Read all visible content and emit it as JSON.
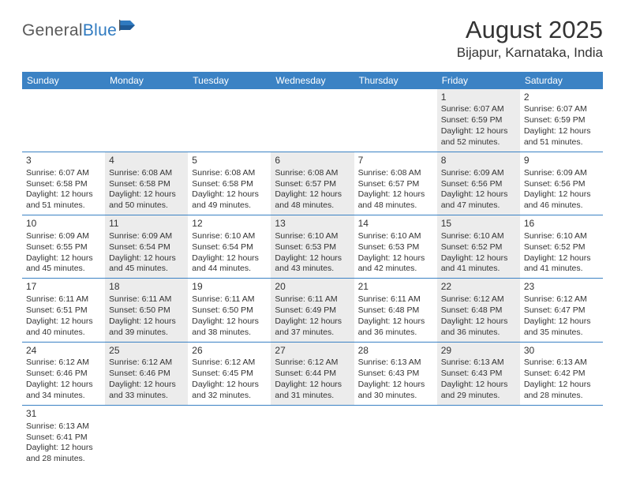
{
  "logo": {
    "part1": "General",
    "part2": "Blue"
  },
  "title": "August 2025",
  "location": "Bijapur, Karnataka, India",
  "colors": {
    "header_bg": "#3b82c4",
    "header_text": "#ffffff",
    "alt_row_bg": "#ececec",
    "divider": "#3b82c4",
    "text": "#333333",
    "logo_gray": "#5a5a5a",
    "logo_blue": "#2f7ac0"
  },
  "day_names": [
    "Sunday",
    "Monday",
    "Tuesday",
    "Wednesday",
    "Thursday",
    "Friday",
    "Saturday"
  ],
  "weeks": [
    [
      {
        "day": "",
        "lines": []
      },
      {
        "day": "",
        "lines": []
      },
      {
        "day": "",
        "lines": []
      },
      {
        "day": "",
        "lines": []
      },
      {
        "day": "",
        "lines": []
      },
      {
        "day": "1",
        "lines": [
          "Sunrise: 6:07 AM",
          "Sunset: 6:59 PM",
          "Daylight: 12 hours and 52 minutes."
        ]
      },
      {
        "day": "2",
        "lines": [
          "Sunrise: 6:07 AM",
          "Sunset: 6:59 PM",
          "Daylight: 12 hours and 51 minutes."
        ]
      }
    ],
    [
      {
        "day": "3",
        "lines": [
          "Sunrise: 6:07 AM",
          "Sunset: 6:58 PM",
          "Daylight: 12 hours and 51 minutes."
        ]
      },
      {
        "day": "4",
        "lines": [
          "Sunrise: 6:08 AM",
          "Sunset: 6:58 PM",
          "Daylight: 12 hours and 50 minutes."
        ]
      },
      {
        "day": "5",
        "lines": [
          "Sunrise: 6:08 AM",
          "Sunset: 6:58 PM",
          "Daylight: 12 hours and 49 minutes."
        ]
      },
      {
        "day": "6",
        "lines": [
          "Sunrise: 6:08 AM",
          "Sunset: 6:57 PM",
          "Daylight: 12 hours and 48 minutes."
        ]
      },
      {
        "day": "7",
        "lines": [
          "Sunrise: 6:08 AM",
          "Sunset: 6:57 PM",
          "Daylight: 12 hours and 48 minutes."
        ]
      },
      {
        "day": "8",
        "lines": [
          "Sunrise: 6:09 AM",
          "Sunset: 6:56 PM",
          "Daylight: 12 hours and 47 minutes."
        ]
      },
      {
        "day": "9",
        "lines": [
          "Sunrise: 6:09 AM",
          "Sunset: 6:56 PM",
          "Daylight: 12 hours and 46 minutes."
        ]
      }
    ],
    [
      {
        "day": "10",
        "lines": [
          "Sunrise: 6:09 AM",
          "Sunset: 6:55 PM",
          "Daylight: 12 hours and 45 minutes."
        ]
      },
      {
        "day": "11",
        "lines": [
          "Sunrise: 6:09 AM",
          "Sunset: 6:54 PM",
          "Daylight: 12 hours and 45 minutes."
        ]
      },
      {
        "day": "12",
        "lines": [
          "Sunrise: 6:10 AM",
          "Sunset: 6:54 PM",
          "Daylight: 12 hours and 44 minutes."
        ]
      },
      {
        "day": "13",
        "lines": [
          "Sunrise: 6:10 AM",
          "Sunset: 6:53 PM",
          "Daylight: 12 hours and 43 minutes."
        ]
      },
      {
        "day": "14",
        "lines": [
          "Sunrise: 6:10 AM",
          "Sunset: 6:53 PM",
          "Daylight: 12 hours and 42 minutes."
        ]
      },
      {
        "day": "15",
        "lines": [
          "Sunrise: 6:10 AM",
          "Sunset: 6:52 PM",
          "Daylight: 12 hours and 41 minutes."
        ]
      },
      {
        "day": "16",
        "lines": [
          "Sunrise: 6:10 AM",
          "Sunset: 6:52 PM",
          "Daylight: 12 hours and 41 minutes."
        ]
      }
    ],
    [
      {
        "day": "17",
        "lines": [
          "Sunrise: 6:11 AM",
          "Sunset: 6:51 PM",
          "Daylight: 12 hours and 40 minutes."
        ]
      },
      {
        "day": "18",
        "lines": [
          "Sunrise: 6:11 AM",
          "Sunset: 6:50 PM",
          "Daylight: 12 hours and 39 minutes."
        ]
      },
      {
        "day": "19",
        "lines": [
          "Sunrise: 6:11 AM",
          "Sunset: 6:50 PM",
          "Daylight: 12 hours and 38 minutes."
        ]
      },
      {
        "day": "20",
        "lines": [
          "Sunrise: 6:11 AM",
          "Sunset: 6:49 PM",
          "Daylight: 12 hours and 37 minutes."
        ]
      },
      {
        "day": "21",
        "lines": [
          "Sunrise: 6:11 AM",
          "Sunset: 6:48 PM",
          "Daylight: 12 hours and 36 minutes."
        ]
      },
      {
        "day": "22",
        "lines": [
          "Sunrise: 6:12 AM",
          "Sunset: 6:48 PM",
          "Daylight: 12 hours and 36 minutes."
        ]
      },
      {
        "day": "23",
        "lines": [
          "Sunrise: 6:12 AM",
          "Sunset: 6:47 PM",
          "Daylight: 12 hours and 35 minutes."
        ]
      }
    ],
    [
      {
        "day": "24",
        "lines": [
          "Sunrise: 6:12 AM",
          "Sunset: 6:46 PM",
          "Daylight: 12 hours and 34 minutes."
        ]
      },
      {
        "day": "25",
        "lines": [
          "Sunrise: 6:12 AM",
          "Sunset: 6:46 PM",
          "Daylight: 12 hours and 33 minutes."
        ]
      },
      {
        "day": "26",
        "lines": [
          "Sunrise: 6:12 AM",
          "Sunset: 6:45 PM",
          "Daylight: 12 hours and 32 minutes."
        ]
      },
      {
        "day": "27",
        "lines": [
          "Sunrise: 6:12 AM",
          "Sunset: 6:44 PM",
          "Daylight: 12 hours and 31 minutes."
        ]
      },
      {
        "day": "28",
        "lines": [
          "Sunrise: 6:13 AM",
          "Sunset: 6:43 PM",
          "Daylight: 12 hours and 30 minutes."
        ]
      },
      {
        "day": "29",
        "lines": [
          "Sunrise: 6:13 AM",
          "Sunset: 6:43 PM",
          "Daylight: 12 hours and 29 minutes."
        ]
      },
      {
        "day": "30",
        "lines": [
          "Sunrise: 6:13 AM",
          "Sunset: 6:42 PM",
          "Daylight: 12 hours and 28 minutes."
        ]
      }
    ],
    [
      {
        "day": "31",
        "lines": [
          "Sunrise: 6:13 AM",
          "Sunset: 6:41 PM",
          "Daylight: 12 hours and 28 minutes."
        ]
      },
      {
        "day": "",
        "lines": []
      },
      {
        "day": "",
        "lines": []
      },
      {
        "day": "",
        "lines": []
      },
      {
        "day": "",
        "lines": []
      },
      {
        "day": "",
        "lines": []
      },
      {
        "day": "",
        "lines": []
      }
    ]
  ]
}
